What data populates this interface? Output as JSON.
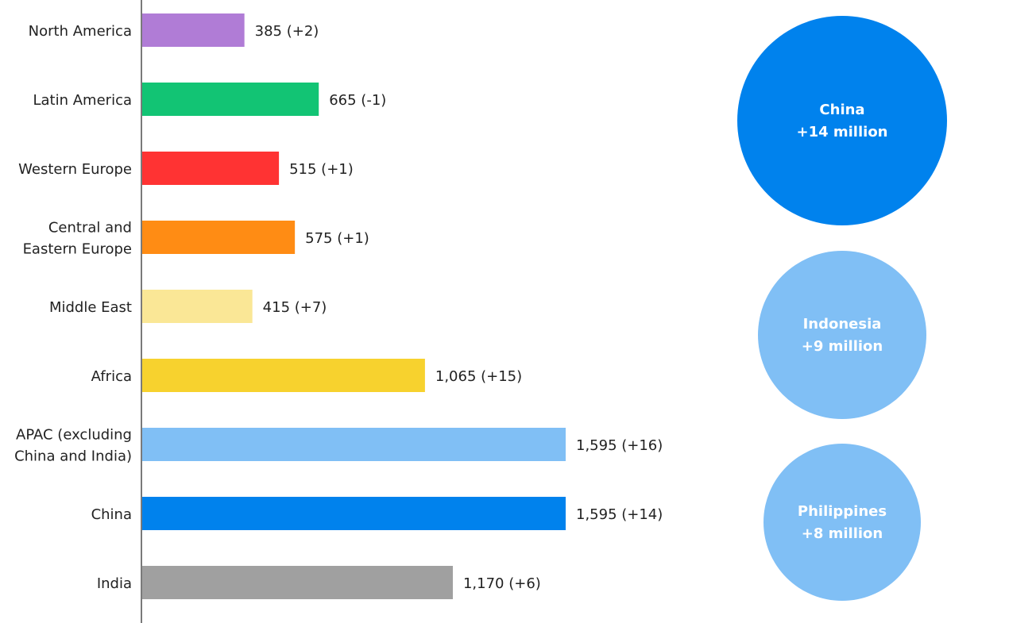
{
  "chart_data": {
    "type": "bar",
    "orientation": "horizontal",
    "categories": [
      [
        "North America"
      ],
      [
        "Latin America"
      ],
      [
        "Western Europe"
      ],
      [
        "Central and",
        "Eastern Europe"
      ],
      [
        "Middle East"
      ],
      [
        "Africa"
      ],
      [
        "APAC (excluding",
        "China and India)"
      ],
      [
        "China"
      ],
      [
        "India"
      ]
    ],
    "values": [
      385,
      665,
      515,
      575,
      415,
      1065,
      1595,
      1595,
      1170
    ],
    "labels": [
      "385 (+2)",
      "665 (-1)",
      "515 (+1)",
      "575 (+1)",
      "415 (+7)",
      "1,065 (+15)",
      "1,595 (+16)",
      "1,595 (+14)",
      "1,170 (+6)"
    ],
    "colors": [
      "#b07cd6",
      "#12c474",
      "#ff3333",
      "#ff8c14",
      "#fae796",
      "#f7d22e",
      "#80bff5",
      "#0082ed",
      "#a0a0a0"
    ],
    "xlim": [
      0,
      2000
    ],
    "grid": false,
    "bubbles": [
      {
        "name": "China",
        "label": "+14 million",
        "value": 14,
        "color": "#0082ed"
      },
      {
        "name": "Indonesia",
        "label": "+9 million",
        "value": 9,
        "color": "#80bff5"
      },
      {
        "name": "Philippines",
        "label": "+8 million",
        "value": 8,
        "color": "#80bff5"
      }
    ]
  }
}
